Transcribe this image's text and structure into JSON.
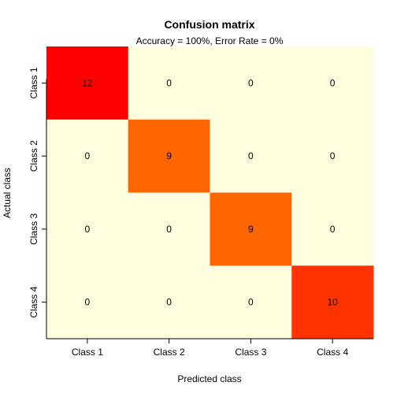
{
  "chart_data": {
    "type": "heatmap",
    "title": "Confusion matrix",
    "subtitle": "Accuracy = 100%, Error Rate = 0%",
    "xlabel": "Predicted class",
    "ylabel": "Actual class",
    "x_categories": [
      "Class 1",
      "Class 2",
      "Class 3",
      "Class 4"
    ],
    "y_categories": [
      "Class 1",
      "Class 2",
      "Class 3",
      "Class 4"
    ],
    "values": [
      [
        12,
        0,
        0,
        0
      ],
      [
        0,
        9,
        0,
        0
      ],
      [
        0,
        0,
        9,
        0
      ],
      [
        0,
        0,
        0,
        10
      ]
    ],
    "colors": {
      "zero": "#ffffe0",
      "value_9": "#ff6600",
      "value_10": "#ff3300",
      "value_12": "#ff0000"
    },
    "grid": false,
    "legend": "none"
  }
}
